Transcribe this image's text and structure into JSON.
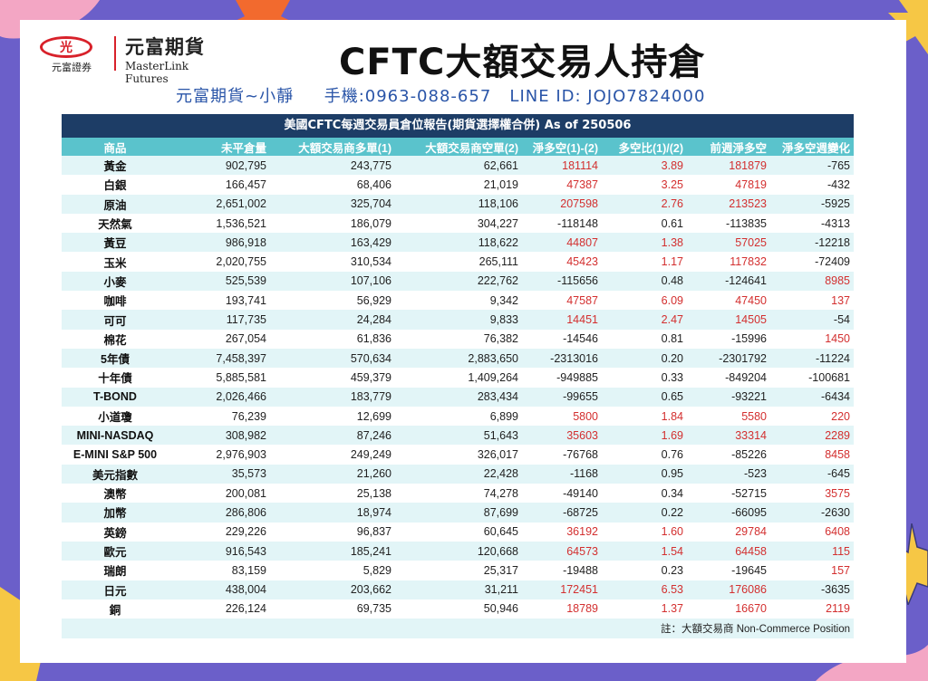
{
  "logo": {
    "mark": "光",
    "sub": "元富證券",
    "cn": "元富期貨",
    "en": "MasterLink Futures"
  },
  "title": "CFTC大額交易人持倉",
  "contact": "元富期貨~小靜     手機:0963-088-657   LINE ID: JOJO7824000",
  "report": {
    "heading": "美國CFTC每週交易員倉位報告(期貨選擇權合併) As of  250506",
    "columns": [
      "商品",
      "未平倉量",
      "大額交易商多單(1)",
      "大額交易商空單(2)",
      "淨多空(1)-(2)",
      "多空比(1)/(2)",
      "前週淨多空",
      "淨多空週變化"
    ],
    "rows": [
      [
        "黃金",
        "902,795",
        "243,775",
        "62,661",
        "181114",
        "3.89",
        "181879",
        "-765"
      ],
      [
        "白銀",
        "166,457",
        "68,406",
        "21,019",
        "47387",
        "3.25",
        "47819",
        "-432"
      ],
      [
        "原油",
        "2,651,002",
        "325,704",
        "118,106",
        "207598",
        "2.76",
        "213523",
        "-5925"
      ],
      [
        "天然氣",
        "1,536,521",
        "186,079",
        "304,227",
        "-118148",
        "0.61",
        "-113835",
        "-4313"
      ],
      [
        "黃豆",
        "986,918",
        "163,429",
        "118,622",
        "44807",
        "1.38",
        "57025",
        "-12218"
      ],
      [
        "玉米",
        "2,020,755",
        "310,534",
        "265,111",
        "45423",
        "1.17",
        "117832",
        "-72409"
      ],
      [
        "小麥",
        "525,539",
        "107,106",
        "222,762",
        "-115656",
        "0.48",
        "-124641",
        "8985"
      ],
      [
        "咖啡",
        "193,741",
        "56,929",
        "9,342",
        "47587",
        "6.09",
        "47450",
        "137"
      ],
      [
        "可可",
        "117,735",
        "24,284",
        "9,833",
        "14451",
        "2.47",
        "14505",
        "-54"
      ],
      [
        "棉花",
        "267,054",
        "61,836",
        "76,382",
        "-14546",
        "0.81",
        "-15996",
        "1450"
      ],
      [
        "5年債",
        "7,458,397",
        "570,634",
        "2,883,650",
        "-2313016",
        "0.20",
        "-2301792",
        "-11224"
      ],
      [
        "十年債",
        "5,885,581",
        "459,379",
        "1,409,264",
        "-949885",
        "0.33",
        "-849204",
        "-100681"
      ],
      [
        "T-BOND",
        "2,026,466",
        "183,779",
        "283,434",
        "-99655",
        "0.65",
        "-93221",
        "-6434"
      ],
      [
        "小道瓊",
        "76,239",
        "12,699",
        "6,899",
        "5800",
        "1.84",
        "5580",
        "220"
      ],
      [
        "MINI-NASDAQ",
        "308,982",
        "87,246",
        "51,643",
        "35603",
        "1.69",
        "33314",
        "2289"
      ],
      [
        "E-MINI S&P 500",
        "2,976,903",
        "249,249",
        "326,017",
        "-76768",
        "0.76",
        "-85226",
        "8458"
      ],
      [
        "美元指數",
        "35,573",
        "21,260",
        "22,428",
        "-1168",
        "0.95",
        "-523",
        "-645"
      ],
      [
        "澳幣",
        "200,081",
        "25,138",
        "74,278",
        "-49140",
        "0.34",
        "-52715",
        "3575"
      ],
      [
        "加幣",
        "286,806",
        "18,974",
        "87,699",
        "-68725",
        "0.22",
        "-66095",
        "-2630"
      ],
      [
        "英鎊",
        "229,226",
        "96,837",
        "60,645",
        "36192",
        "1.60",
        "29784",
        "6408"
      ],
      [
        "歐元",
        "916,543",
        "185,241",
        "120,668",
        "64573",
        "1.54",
        "64458",
        "115"
      ],
      [
        "瑞朗",
        "83,159",
        "5,829",
        "25,317",
        "-19488",
        "0.23",
        "-19645",
        "157"
      ],
      [
        "日元",
        "438,004",
        "203,662",
        "31,211",
        "172451",
        "6.53",
        "176086",
        "-3635"
      ],
      [
        "銅",
        "226,124",
        "69,735",
        "50,946",
        "18789",
        "1.37",
        "16670",
        "2119"
      ]
    ],
    "note": "註：大額交易商 Non-Commerce Position"
  },
  "colors": {
    "background": "#6b5fc9",
    "header": "#1d3d66",
    "column_header": "#5ac3cc",
    "stripe": "#e2f5f7",
    "positive": "#d32f2f",
    "star_orange": "#f26a2e",
    "star_yellow": "#f6c745",
    "blob_pink": "#f3a6c4"
  }
}
